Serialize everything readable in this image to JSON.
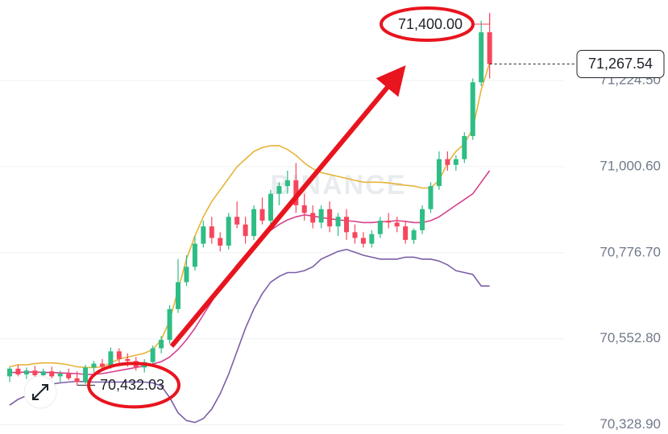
{
  "chart_data": {
    "type": "candlestick",
    "ylim": [
      70305,
      71434
    ],
    "yticks": [
      {
        "value": 70328.9,
        "label": "70,328.90"
      },
      {
        "value": 70552.8,
        "label": "70,552.80"
      },
      {
        "value": 70776.7,
        "label": "70,776.70"
      },
      {
        "value": 71000.6,
        "label": "71,000.60"
      },
      {
        "value": 71224.5,
        "label": "71,224.50"
      }
    ],
    "grid": true,
    "up_color": "#2ebd85",
    "down_color": "#f6465d",
    "watermark": "BINANCE",
    "open": [
      70455,
      70475,
      70460,
      70470,
      70458,
      70468,
      70455,
      70462,
      70450,
      70440,
      70478,
      70488,
      70480,
      70520,
      70500,
      70495,
      70478,
      70492,
      70528,
      70550,
      70630,
      70700,
      70740,
      70800,
      70845,
      70815,
      70795,
      70870,
      70850,
      70820,
      70890,
      70860,
      70930,
      70950,
      70965,
      70900,
      70880,
      70855,
      70890,
      70845,
      70870,
      70830,
      70815,
      70800,
      70825,
      70860,
      70855,
      70845,
      70810,
      70835,
      70890,
      70950,
      71020,
      71005,
      71020,
      71080,
      71220,
      71350
    ],
    "high": [
      70480,
      70485,
      70478,
      70482,
      70475,
      70480,
      70470,
      70475,
      70468,
      70485,
      70495,
      70500,
      70530,
      70528,
      70515,
      70505,
      70500,
      70535,
      70560,
      70640,
      70760,
      70770,
      70820,
      70860,
      70870,
      70830,
      70880,
      70910,
      70870,
      70900,
      70920,
      70940,
      70960,
      70990,
      71010,
      70930,
      70900,
      70900,
      70910,
      70880,
      70890,
      70850,
      70830,
      70835,
      70870,
      70880,
      70870,
      70860,
      70840,
      70900,
      70960,
      71040,
      71040,
      71030,
      71090,
      71230,
      71380,
      71400
    ],
    "low": [
      70440,
      70455,
      70448,
      70452,
      70445,
      70450,
      70440,
      70445,
      70432.03,
      70435,
      70465,
      70470,
      70475,
      70490,
      70480,
      70470,
      70465,
      70485,
      70515,
      70540,
      70620,
      70690,
      70730,
      70790,
      70800,
      70780,
      70785,
      70840,
      70800,
      70810,
      70850,
      70850,
      70900,
      70930,
      70880,
      70860,
      70840,
      70840,
      70830,
      70820,
      70810,
      70800,
      70790,
      70790,
      70815,
      70840,
      70830,
      70800,
      70800,
      70825,
      70880,
      70940,
      70990,
      70990,
      71010,
      71070,
      71210,
      71230
    ],
    "close": [
      70475,
      70460,
      70470,
      70458,
      70468,
      70455,
      70462,
      70450,
      70440,
      70478,
      70488,
      70480,
      70520,
      70500,
      70495,
      70478,
      70492,
      70528,
      70550,
      70630,
      70700,
      70740,
      70800,
      70845,
      70815,
      70795,
      70870,
      70850,
      70820,
      70890,
      70860,
      70930,
      70950,
      70965,
      70900,
      70880,
      70855,
      70890,
      70845,
      70870,
      70830,
      70815,
      70800,
      70825,
      70860,
      70855,
      70845,
      70810,
      70835,
      70890,
      70950,
      71020,
      71005,
      71020,
      71080,
      71220,
      71350,
      71267.54
    ],
    "lines": [
      {
        "color": "#e8b339",
        "values": [
          70480,
          70485,
          70485,
          70488,
          70490,
          70490,
          70488,
          70485,
          70480,
          70478,
          70478,
          70480,
          70490,
          70500,
          70505,
          70510,
          70515,
          70525,
          70550,
          70600,
          70680,
          70760,
          70820,
          70870,
          70910,
          70940,
          70970,
          71000,
          71020,
          71040,
          71050,
          71055,
          71055,
          71045,
          71030,
          71010,
          70995,
          70985,
          70980,
          70975,
          70970,
          70965,
          70960,
          70960,
          70960,
          70958,
          70955,
          70952,
          70950,
          70945,
          70945,
          70965,
          71010,
          71040,
          71060,
          71100,
          71200,
          71270
        ]
      },
      {
        "color": "#d63f8c",
        "values": [
          70465,
          70465,
          70466,
          70466,
          70465,
          70465,
          70464,
          70463,
          70462,
          70460,
          70460,
          70462,
          70466,
          70470,
          70474,
          70478,
          70482,
          70487,
          70493,
          70505,
          70525,
          70550,
          70580,
          70615,
          70650,
          70685,
          70715,
          70745,
          70770,
          70795,
          70815,
          70835,
          70850,
          70862,
          70870,
          70875,
          70872,
          70868,
          70865,
          70862,
          70860,
          70858,
          70855,
          70855,
          70857,
          70858,
          70860,
          70858,
          70855,
          70855,
          70860,
          70870,
          70885,
          70900,
          70915,
          70930,
          70960,
          70990
        ]
      },
      {
        "color": "#7b5ea7",
        "values": [
          70380,
          70395,
          70405,
          70420,
          70430,
          70435,
          70438,
          70440,
          70442,
          70441,
          70440,
          70440,
          70440,
          70440,
          70440,
          70440,
          70440,
          70438,
          70430,
          70400,
          70360,
          70340,
          70335,
          70345,
          70370,
          70410,
          70460,
          70520,
          70580,
          70630,
          70670,
          70700,
          70715,
          70725,
          70725,
          70730,
          70740,
          70760,
          70770,
          70780,
          70785,
          70778,
          70770,
          70765,
          70760,
          70760,
          70760,
          70765,
          70765,
          70760,
          70760,
          70755,
          70745,
          70730,
          70725,
          70720,
          70690,
          70690
        ]
      }
    ],
    "high_label": {
      "text": "71,400.00",
      "value": 71400
    },
    "low_label": {
      "text": "70,432.03",
      "value": 70432.03
    },
    "last_price": {
      "text": "71,267.54",
      "value": 71267.54
    }
  }
}
